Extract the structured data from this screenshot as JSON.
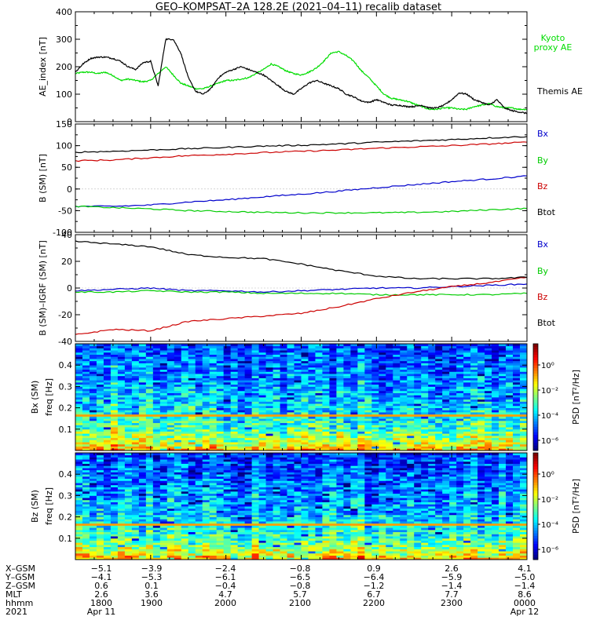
{
  "title": "GEO–KOMPSAT–2A 128.2E (2021–04–11) recalib dataset",
  "chart_data": [
    {
      "type": "line",
      "ylabel": "AE_index [nT]",
      "ylim": [
        0,
        400
      ],
      "yticks": [
        0,
        100,
        200,
        300,
        400
      ],
      "legend": [
        {
          "label": "Kyoto proxy AE",
          "color": "#00dd00"
        },
        {
          "label": "Themis AE",
          "color": "#000000"
        }
      ],
      "x_hours": [
        18.0,
        18.1,
        18.2,
        18.3,
        18.4,
        18.5,
        18.6,
        18.7,
        18.8,
        18.9,
        19.0,
        19.1,
        19.2,
        19.3,
        19.4,
        19.5,
        19.6,
        19.7,
        19.8,
        19.9,
        20.0,
        20.1,
        20.2,
        20.3,
        20.4,
        20.5,
        20.6,
        20.7,
        20.8,
        20.9,
        21.0,
        21.1,
        21.2,
        21.3,
        21.4,
        21.5,
        21.6,
        21.7,
        21.8,
        21.9,
        22.0,
        22.1,
        22.2,
        22.3,
        22.4,
        22.5,
        22.6,
        22.7,
        22.8,
        22.9,
        23.0,
        23.1,
        23.2,
        23.3,
        23.4,
        23.5,
        23.6,
        23.7,
        23.8,
        23.9,
        24.0
      ],
      "series": [
        {
          "name": "Kyoto proxy AE",
          "color": "#00dd00",
          "values": [
            175,
            180,
            180,
            175,
            180,
            168,
            150,
            155,
            150,
            145,
            150,
            175,
            200,
            170,
            140,
            130,
            120,
            120,
            130,
            140,
            150,
            150,
            155,
            160,
            175,
            190,
            210,
            200,
            185,
            175,
            170,
            180,
            195,
            220,
            250,
            255,
            240,
            220,
            185,
            160,
            130,
            100,
            85,
            80,
            75,
            65,
            55,
            45,
            45,
            50,
            50,
            45,
            45,
            55,
            60,
            65,
            55,
            50,
            50,
            45,
            45
          ]
        },
        {
          "name": "Themis AE",
          "color": "#000000",
          "values": [
            180,
            210,
            230,
            235,
            235,
            230,
            220,
            200,
            190,
            215,
            220,
            130,
            300,
            300,
            250,
            160,
            110,
            100,
            120,
            160,
            180,
            190,
            200,
            190,
            180,
            170,
            150,
            130,
            110,
            100,
            120,
            140,
            150,
            140,
            130,
            120,
            100,
            90,
            75,
            70,
            80,
            70,
            60,
            60,
            55,
            55,
            60,
            50,
            50,
            60,
            80,
            105,
            100,
            80,
            70,
            60,
            80,
            50,
            40,
            35,
            30
          ]
        }
      ]
    },
    {
      "type": "line",
      "ylabel": "B (SM) [nT]",
      "ylim": [
        -100,
        150
      ],
      "yticks": [
        -100,
        -50,
        0,
        50,
        100,
        150
      ],
      "legend": [
        {
          "label": "Bx",
          "color": "#0000cc"
        },
        {
          "label": "By",
          "color": "#00cc00"
        },
        {
          "label": "Bz",
          "color": "#cc0000"
        },
        {
          "label": "Btot",
          "color": "#000000"
        }
      ],
      "x_hours": [
        18.0,
        18.5,
        19.0,
        19.5,
        20.0,
        20.5,
        21.0,
        21.5,
        22.0,
        22.5,
        23.0,
        23.5,
        24.0
      ],
      "series": [
        {
          "name": "Bx",
          "color": "#0000cc",
          "values": [
            -40,
            -40,
            -37,
            -30,
            -25,
            -18,
            -12,
            -5,
            3,
            10,
            17,
            23,
            30
          ]
        },
        {
          "name": "By",
          "color": "#00cc00",
          "values": [
            -40,
            -43,
            -46,
            -50,
            -52,
            -54,
            -55,
            -55,
            -55,
            -54,
            -52,
            -48,
            -45
          ]
        },
        {
          "name": "Bz",
          "color": "#cc0000",
          "values": [
            65,
            67,
            72,
            77,
            80,
            84,
            87,
            90,
            94,
            97,
            100,
            104,
            108
          ]
        },
        {
          "name": "Btot",
          "color": "#000000",
          "values": [
            85,
            87,
            90,
            93,
            96,
            99,
            101,
            104,
            108,
            111,
            114,
            118,
            121
          ]
        }
      ]
    },
    {
      "type": "line",
      "ylabel": "B (SM)–IGRF (SM) [nT]",
      "ylim": [
        -40,
        40
      ],
      "yticks": [
        -40,
        -20,
        0,
        20,
        40
      ],
      "legend": [
        {
          "label": "Bx",
          "color": "#0000cc"
        },
        {
          "label": "By",
          "color": "#00cc00"
        },
        {
          "label": "Bz",
          "color": "#cc0000"
        },
        {
          "label": "Btot",
          "color": "#000000"
        }
      ],
      "x_hours": [
        18.0,
        18.5,
        19.0,
        19.5,
        20.0,
        20.5,
        21.0,
        21.5,
        22.0,
        22.5,
        23.0,
        23.5,
        24.0
      ],
      "series": [
        {
          "name": "Bx",
          "color": "#0000cc",
          "values": [
            -2,
            -1,
            0,
            -2,
            -2,
            -3,
            -2,
            -1,
            0,
            0,
            1,
            2,
            3
          ]
        },
        {
          "name": "By",
          "color": "#00cc00",
          "values": [
            -3,
            -3,
            -2,
            -3,
            -3,
            -4,
            -4,
            -4,
            -5,
            -5,
            -5,
            -5,
            -4
          ]
        },
        {
          "name": "Bz",
          "color": "#cc0000",
          "values": [
            -35,
            -31,
            -32,
            -25,
            -23,
            -21,
            -19,
            -14,
            -8,
            -3,
            1,
            4,
            8
          ]
        },
        {
          "name": "Btot",
          "color": "#000000",
          "values": [
            35,
            33,
            31,
            25,
            23,
            22,
            18,
            13,
            9,
            7,
            7,
            7,
            8
          ]
        }
      ]
    },
    {
      "type": "heatmap",
      "ylabel": "Bx (SM) freq [Hz]",
      "yticks": [
        0.1,
        0.2,
        0.3,
        0.4
      ],
      "yrange": [
        0,
        0.5
      ],
      "colorbar": {
        "label": "PSD [nT²/Hz]",
        "ticks": [
          "10⁰",
          "10⁻²",
          "10⁻⁴",
          "10⁻⁶"
        ]
      }
    },
    {
      "type": "heatmap",
      "ylabel": "Bz (SM) freq [Hz]",
      "yticks": [
        0.1,
        0.2,
        0.3,
        0.4
      ],
      "yrange": [
        0,
        0.5
      ],
      "colorbar": {
        "label": "PSD [nT²/Hz]",
        "ticks": [
          "10⁰",
          "10⁻²",
          "10⁻⁴",
          "10⁻⁶"
        ]
      }
    }
  ],
  "xaxis": {
    "row_labels": [
      "X–GSM",
      "Y–GSM",
      "Z–GSM",
      "MLT",
      "hhmm",
      "2021"
    ],
    "columns": [
      [
        "−5.1",
        "−4.1",
        "0.6",
        "2.6",
        "1800",
        "Apr 11"
      ],
      [
        "−3.9",
        "−5.3",
        "0.1",
        "3.6",
        "1900",
        ""
      ],
      [
        "−2.4",
        "−6.1",
        "−0.4",
        "4.7",
        "2000",
        ""
      ],
      [
        "−0.8",
        "−6.5",
        "−0.8",
        "5.7",
        "2100",
        ""
      ],
      [
        "0.9",
        "−6.4",
        "−1.2",
        "6.7",
        "2200",
        ""
      ],
      [
        "2.6",
        "−5.9",
        "−1.4",
        "7.7",
        "2300",
        ""
      ],
      [
        "4.1",
        "−5.0",
        "−1.4",
        "8.6",
        "0000",
        "Apr 12"
      ]
    ]
  }
}
